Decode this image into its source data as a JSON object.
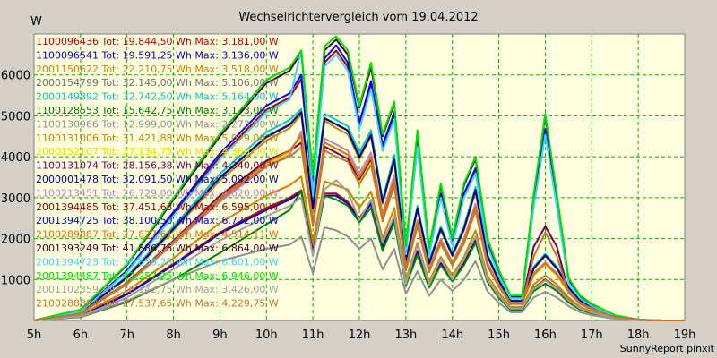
{
  "chart_data": {
    "type": "line",
    "title": "Wechselrichtervergleich vom 19.04.2012",
    "ylabel": "W",
    "footer": "SunnyReport pinxit",
    "xlim": [
      5,
      19
    ],
    "ylim": [
      0,
      7000
    ],
    "grid": true,
    "legend_placement": "top-left",
    "x_ticks": [
      {
        "v": 5,
        "label": "5h"
      },
      {
        "v": 6,
        "label": "6h"
      },
      {
        "v": 7,
        "label": "7h"
      },
      {
        "v": 8,
        "label": "8h"
      },
      {
        "v": 9,
        "label": "9h"
      },
      {
        "v": 10,
        "label": "10h"
      },
      {
        "v": 11,
        "label": "11h"
      },
      {
        "v": 12,
        "label": "12h"
      },
      {
        "v": 13,
        "label": "13h"
      },
      {
        "v": 14,
        "label": "14h"
      },
      {
        "v": 15,
        "label": "15h"
      },
      {
        "v": 16,
        "label": "16h"
      },
      {
        "v": 17,
        "label": "17h"
      },
      {
        "v": 18,
        "label": "18h"
      },
      {
        "v": 19,
        "label": "19h"
      }
    ],
    "y_ticks": [
      {
        "v": 1000,
        "label": "1000"
      },
      {
        "v": 2000,
        "label": "2000"
      },
      {
        "v": 3000,
        "label": "3000"
      },
      {
        "v": 4000,
        "label": "4000"
      },
      {
        "v": 5000,
        "label": "5000"
      },
      {
        "v": 6000,
        "label": "6000"
      }
    ],
    "x": [
      5.0,
      6.0,
      7.0,
      8.0,
      9.0,
      10.0,
      10.5,
      10.75,
      11.0,
      11.25,
      11.5,
      11.75,
      12.0,
      12.25,
      12.5,
      12.75,
      13.0,
      13.25,
      13.5,
      13.75,
      14.0,
      14.25,
      14.5,
      14.75,
      15.0,
      15.25,
      15.5,
      15.75,
      16.0,
      16.25,
      16.5,
      16.75,
      17.0,
      17.5,
      18.0,
      18.5,
      19.0
    ],
    "series": [
      {
        "name": "1100096436 Tot: 19.844,50 Wh Max: 3.181,00 W",
        "color": "#c00000",
        "values": [
          0,
          120,
          650,
          1380,
          2150,
          2750,
          3000,
          3180,
          1700,
          3100,
          3100,
          2900,
          2500,
          2900,
          1800,
          2500,
          900,
          1700,
          850,
          1400,
          1000,
          1400,
          2000,
          1000,
          600,
          300,
          300,
          800,
          1000,
          800,
          500,
          300,
          200,
          60,
          10,
          0,
          0
        ]
      },
      {
        "name": "1100096541 Tot: 19.591,25 Wh Max: 3.136,00 W",
        "color": "#0000c8",
        "values": [
          0,
          110,
          630,
          1350,
          2120,
          2700,
          2950,
          3136,
          1650,
          3050,
          3050,
          2850,
          2450,
          2850,
          1750,
          2450,
          880,
          1650,
          830,
          1380,
          980,
          1380,
          1950,
          980,
          590,
          290,
          290,
          780,
          980,
          780,
          490,
          290,
          190,
          55,
          10,
          0,
          0
        ]
      },
      {
        "name": "2001150622 Tot: 22.210,75 Wh Max: 3.518,00 W",
        "color": "#d08000",
        "values": [
          0,
          140,
          720,
          1520,
          2380,
          3050,
          3300,
          3518,
          1900,
          3400,
          3300,
          3200,
          2750,
          3150,
          2000,
          2750,
          1000,
          1900,
          950,
          1550,
          1100,
          1550,
          2200,
          1100,
          680,
          330,
          330,
          880,
          1100,
          880,
          560,
          330,
          220,
          70,
          10,
          0,
          0
        ]
      },
      {
        "name": "2000154799 Tot: 32.145,00 Wh Max: 5.106,00 W",
        "color": "#707070",
        "values": [
          0,
          200,
          1050,
          2250,
          3500,
          4500,
          4800,
          5106,
          2750,
          4950,
          4800,
          4650,
          4000,
          4550,
          2900,
          3950,
          1450,
          2750,
          1400,
          2250,
          1600,
          2250,
          3200,
          1600,
          980,
          480,
          480,
          1280,
          1600,
          1280,
          810,
          480,
          320,
          100,
          15,
          0,
          0
        ]
      },
      {
        "name": "2000149892 Tot: 32.742,50 Wh Max: 5.164,00 W",
        "color": "#00c8c8",
        "values": [
          0,
          210,
          1080,
          2300,
          3580,
          4600,
          4900,
          5164,
          2800,
          5050,
          4900,
          4750,
          4100,
          4650,
          2950,
          4050,
          1480,
          2800,
          1430,
          2300,
          1630,
          2300,
          3260,
          1630,
          1000,
          490,
          490,
          1310,
          1630,
          1310,
          830,
          490,
          330,
          100,
          15,
          0,
          0
        ]
      },
      {
        "name": "1100128553 Tot: 15.642,75 Wh Max: 3.173,00 W",
        "color": "#008000",
        "values": [
          0,
          80,
          450,
          1000,
          1650,
          2350,
          2700,
          3173,
          1600,
          3050,
          2950,
          2800,
          2400,
          2750,
          1700,
          2400,
          850,
          1600,
          800,
          1350,
          950,
          1350,
          1900,
          950,
          550,
          260,
          260,
          720,
          900,
          720,
          440,
          260,
          170,
          50,
          10,
          0,
          0
        ]
      },
      {
        "name": "1100130966 Tot: 12.999,00 Wh Max: 2.273,00 W",
        "color": "#909090",
        "values": [
          0,
          90,
          480,
          1000,
          1450,
          1750,
          1850,
          2050,
          1150,
          2273,
          2200,
          2050,
          1750,
          2000,
          1250,
          1750,
          650,
          1200,
          600,
          1000,
          720,
          1000,
          1450,
          720,
          430,
          200,
          200,
          560,
          700,
          560,
          350,
          200,
          130,
          40,
          5,
          0,
          0
        ]
      },
      {
        "name": "1100131006 Tot: 31.421,88 Wh Max: 5.029,00 W",
        "color": "#b8860b",
        "values": [
          0,
          200,
          1030,
          2200,
          3420,
          4400,
          4700,
          5029,
          2700,
          4880,
          4700,
          4550,
          3950,
          4500,
          2850,
          3900,
          1420,
          2700,
          1370,
          2200,
          1570,
          2200,
          3150,
          1570,
          960,
          470,
          470,
          1260,
          1570,
          1260,
          800,
          470,
          310,
          95,
          15,
          0,
          0
        ]
      },
      {
        "name": "2000152107 Tot: 27.134,75 Wh Max: 4.366,00 W",
        "color": "#e0e000",
        "values": [
          0,
          170,
          900,
          1900,
          2950,
          3800,
          4100,
          4366,
          2350,
          4250,
          4100,
          3950,
          3400,
          3900,
          2450,
          3350,
          1230,
          2330,
          1190,
          1900,
          1360,
          1900,
          2720,
          1360,
          830,
          410,
          410,
          1090,
          1360,
          1090,
          690,
          410,
          270,
          85,
          15,
          0,
          0
        ]
      },
      {
        "name": "1100131074 Tot: 28.156,38 Wh Max: 4.340,00 W",
        "color": "#6a0050",
        "values": [
          0,
          180,
          920,
          1950,
          3050,
          3900,
          4150,
          4340,
          2400,
          4250,
          4100,
          3950,
          3450,
          3950,
          2500,
          3450,
          1270,
          2400,
          1230,
          1950,
          1400,
          1950,
          2800,
          1400,
          860,
          420,
          420,
          1800,
          2300,
          1800,
          700,
          420,
          280,
          90,
          15,
          0,
          0
        ]
      },
      {
        "name": "2000001478 Tot: 32.091,50 Wh Max: 5.092,00 W",
        "color": "#000080",
        "values": [
          0,
          200,
          1050,
          2240,
          3490,
          4480,
          4780,
          5092,
          2740,
          4940,
          4790,
          4640,
          3990,
          4540,
          2890,
          3940,
          1440,
          2740,
          1390,
          2240,
          1590,
          2240,
          3190,
          1590,
          970,
          480,
          480,
          1270,
          1590,
          1270,
          800,
          480,
          320,
          100,
          15,
          0,
          0
        ]
      },
      {
        "name": "1100213451 Tot: 26.729,00 Wh Max: 4.620,00 W",
        "color": "#c080c0",
        "values": [
          0,
          170,
          880,
          1870,
          2900,
          3750,
          4050,
          4620,
          2320,
          4450,
          4300,
          4150,
          3600,
          4100,
          2600,
          3550,
          1300,
          2450,
          1250,
          2000,
          1420,
          2000,
          2850,
          1420,
          870,
          430,
          430,
          1150,
          1420,
          1150,
          730,
          430,
          290,
          90,
          15,
          0,
          0
        ]
      },
      {
        "name": "2001394485 Tot: 37.451,63 Wh Max: 6.595,00 W",
        "color": "#a00000",
        "values": [
          0,
          220,
          1200,
          2600,
          4000,
          5150,
          5450,
          5900,
          3150,
          6300,
          6595,
          6200,
          4750,
          5750,
          4200,
          5000,
          1650,
          4300,
          1600,
          3050,
          1850,
          3050,
          3650,
          1850,
          1120,
          550,
          550,
          2800,
          4600,
          2800,
          940,
          550,
          360,
          115,
          20,
          0,
          0
        ]
      },
      {
        "name": "2001394725 Tot: 38.100,50 Wh Max: 6.722,00 W",
        "color": "#0000ff",
        "values": [
          0,
          230,
          1220,
          2650,
          4080,
          5250,
          5550,
          6000,
          3200,
          6400,
          6722,
          6300,
          4830,
          5850,
          4280,
          5080,
          1680,
          4380,
          1630,
          3100,
          1880,
          3100,
          3720,
          1880,
          1140,
          560,
          560,
          2850,
          4680,
          2850,
          960,
          560,
          370,
          120,
          20,
          0,
          0
        ]
      },
      {
        "name": "2100289887 Tot: 27.827,61 Wh Max: 4.514,11 W",
        "color": "#e07000",
        "values": [
          0,
          175,
          910,
          1920,
          3000,
          3850,
          4150,
          4514,
          2380,
          4350,
          4200,
          4050,
          3500,
          4000,
          2550,
          3450,
          1260,
          2380,
          1220,
          1940,
          1390,
          1940,
          2780,
          1390,
          850,
          420,
          420,
          1120,
          1390,
          1120,
          710,
          420,
          280,
          85,
          15,
          0,
          0
        ]
      },
      {
        "name": "2001393249 Tot: 41.886,75 Wh Max: 6.864,00 W",
        "color": "#400020",
        "values": [
          0,
          260,
          1350,
          2950,
          4500,
          5800,
          6100,
          6550,
          3500,
          6600,
          6864,
          6500,
          5200,
          6200,
          4500,
          5300,
          1800,
          4600,
          1750,
          3300,
          2000,
          3300,
          3950,
          2000,
          1220,
          600,
          600,
          3050,
          5000,
          3050,
          1020,
          600,
          400,
          125,
          20,
          0,
          0
        ]
      },
      {
        "name": "2001394723 Tot: 36.859,25 Wh Max: 6.601,00 W",
        "color": "#40d0ff",
        "values": [
          0,
          215,
          1180,
          2560,
          3940,
          5080,
          5400,
          6601,
          3100,
          6200,
          6500,
          6100,
          4680,
          5660,
          4140,
          4920,
          1620,
          4240,
          1580,
          3000,
          1820,
          3000,
          3600,
          1820,
          1100,
          540,
          540,
          2760,
          4540,
          2760,
          920,
          540,
          350,
          110,
          20,
          0,
          0
        ]
      },
      {
        "name": "2001394487 Tot: 42.257,25 Wh Max: 6.946,00 W",
        "color": "#00e000",
        "values": [
          0,
          265,
          1370,
          3000,
          4560,
          5880,
          6180,
          6600,
          3550,
          6700,
          6946,
          6600,
          5250,
          6300,
          4550,
          5350,
          1820,
          4650,
          1770,
          3350,
          2020,
          3350,
          4000,
          2020,
          1240,
          610,
          610,
          3080,
          5050,
          3080,
          1040,
          610,
          410,
          130,
          20,
          0,
          0
        ]
      },
      {
        "name": "2001102359 Tot: 18.142,75 Wh Max: 3.426,00 W",
        "color": "#a0a0a0",
        "values": [
          0,
          100,
          560,
          1250,
          1950,
          2550,
          2800,
          3000,
          1580,
          3200,
          3426,
          3150,
          2450,
          2950,
          1900,
          2550,
          900,
          1850,
          870,
          1500,
          1000,
          1500,
          2050,
          1000,
          600,
          290,
          290,
          780,
          980,
          780,
          490,
          290,
          190,
          60,
          10,
          0,
          0
        ]
      },
      {
        "name": "2100288864 Tot: 27.537,65 Wh Max: 4.229,75 W",
        "color": "#c07830",
        "values": [
          0,
          170,
          890,
          1900,
          2950,
          3780,
          4000,
          4229,
          2300,
          4150,
          4000,
          3880,
          3330,
          3800,
          2420,
          3300,
          1220,
          2300,
          1180,
          1880,
          1340,
          1880,
          2680,
          1340,
          820,
          400,
          400,
          1560,
          2150,
          1560,
          680,
          400,
          270,
          85,
          15,
          0,
          0
        ]
      }
    ]
  }
}
